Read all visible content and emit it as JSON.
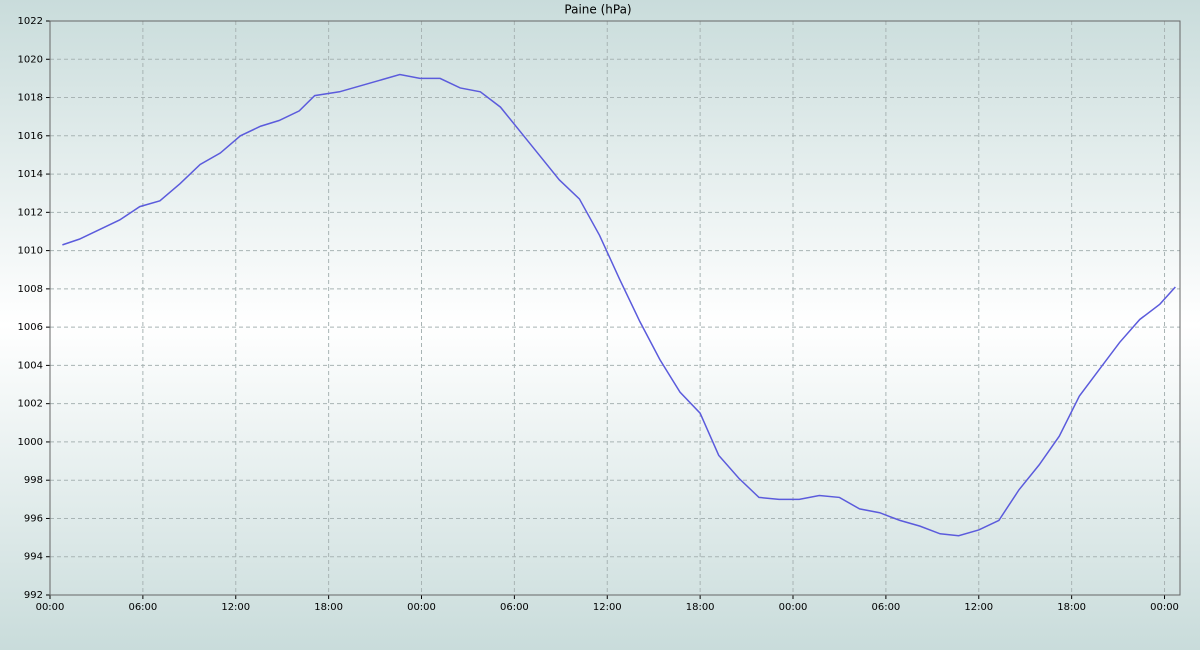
{
  "chart_data": {
    "type": "line",
    "title": "Paine (hPa)",
    "x": [
      0.8,
      1.9,
      3.2,
      4.5,
      5.8,
      7.1,
      8.4,
      9.7,
      11.0,
      12.3,
      13.6,
      14.8,
      16.1,
      17.1,
      18.7,
      20.0,
      21.3,
      22.6,
      23.9,
      25.2,
      26.5,
      27.8,
      29.1,
      30.3,
      31.6,
      32.9,
      34.2,
      35.5,
      36.8,
      38.1,
      39.4,
      40.7,
      42.0,
      43.2,
      44.5,
      45.8,
      47.1,
      48.4,
      49.7,
      51.0,
      52.3,
      53.6,
      54.9,
      56.2,
      57.5,
      58.7,
      60.0,
      61.3,
      62.6,
      63.9,
      65.2,
      66.5,
      67.8,
      69.1,
      70.4,
      71.7,
      72.7
    ],
    "series": [
      {
        "name": "Paine",
        "color": "#5b5bdc",
        "values": [
          1010.3,
          1010.6,
          1011.1,
          1011.6,
          1012.3,
          1012.6,
          1013.5,
          1014.5,
          1015.1,
          1016.0,
          1016.5,
          1016.8,
          1017.3,
          1018.1,
          1018.3,
          1018.6,
          1018.9,
          1019.2,
          1019.0,
          1019.0,
          1018.5,
          1018.3,
          1017.5,
          1016.3,
          1015.0,
          1013.7,
          1012.7,
          1010.8,
          1008.5,
          1006.3,
          1004.3,
          1002.6,
          1001.5,
          999.3,
          998.1,
          997.1,
          997.0,
          997.0,
          997.2,
          997.1,
          996.5,
          996.3,
          995.9,
          995.6,
          995.2,
          995.1,
          995.4,
          995.9,
          997.5,
          998.8,
          1000.3,
          1002.4,
          1003.8,
          1005.2,
          1006.4,
          1007.2,
          1008.1
        ]
      }
    ],
    "xlim": [
      0,
      73
    ],
    "xticks": [
      {
        "value": 0,
        "label": "00:00"
      },
      {
        "value": 6,
        "label": "06:00"
      },
      {
        "value": 12,
        "label": "12:00"
      },
      {
        "value": 18,
        "label": "18:00"
      },
      {
        "value": 24,
        "label": "00:00"
      },
      {
        "value": 30,
        "label": "06:00"
      },
      {
        "value": 36,
        "label": "12:00"
      },
      {
        "value": 42,
        "label": "18:00"
      },
      {
        "value": 48,
        "label": "00:00"
      },
      {
        "value": 54,
        "label": "06:00"
      },
      {
        "value": 60,
        "label": "12:00"
      },
      {
        "value": 66,
        "label": "18:00"
      },
      {
        "value": 72,
        "label": "00:00"
      }
    ],
    "ylim": [
      992,
      1022
    ],
    "yticks": [
      992,
      994,
      996,
      998,
      1000,
      1002,
      1004,
      1006,
      1008,
      1010,
      1012,
      1014,
      1016,
      1018,
      1020,
      1022
    ],
    "grid": true
  }
}
